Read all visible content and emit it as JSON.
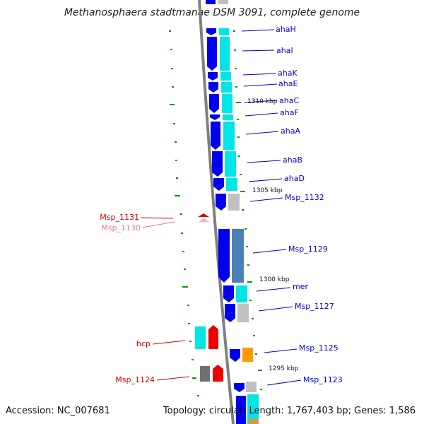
{
  "title": "Methanosphaera stadtmanae DSM 3091, complete genome",
  "footer": {
    "accession": "Accession: NC_007681",
    "topology": "Topology: circular; Length: 1,767,403 bp; Genes: 1,586"
  },
  "colors": {
    "backbone": "#808080",
    "cds": "#0000ee",
    "tick": "#009900",
    "label_blue": "#0000cc",
    "label_red": "#cc0000",
    "label_pink": "#ee7799"
  },
  "scale_labels": [
    {
      "text": "1310 kbp"
    },
    {
      "text": "1305 kbp"
    },
    {
      "text": "1300 kbp"
    },
    {
      "text": "1295 kbp"
    }
  ],
  "genes": [
    {
      "label": "ahaH",
      "strand": "right",
      "color": "blue"
    },
    {
      "label": "ahaI",
      "strand": "right",
      "color": "blue"
    },
    {
      "label": "ahaK",
      "strand": "right",
      "color": "blue"
    },
    {
      "label": "ahaE",
      "strand": "right",
      "color": "blue"
    },
    {
      "label": "ahaC",
      "strand": "right",
      "color": "blue"
    },
    {
      "label": "ahaF",
      "strand": "right",
      "color": "blue"
    },
    {
      "label": "ahaA",
      "strand": "right",
      "color": "blue"
    },
    {
      "label": "ahaB",
      "strand": "right",
      "color": "blue"
    },
    {
      "label": "ahaD",
      "strand": "right",
      "color": "blue"
    },
    {
      "label": "Msp_1132",
      "strand": "right",
      "color": "blue"
    },
    {
      "label": "Msp_1131",
      "strand": "left",
      "color": "red"
    },
    {
      "label": "Msp_1130",
      "strand": "left",
      "color": "pink"
    },
    {
      "label": "Msp_1129",
      "strand": "right",
      "color": "blue"
    },
    {
      "label": "mer",
      "strand": "right",
      "color": "blue"
    },
    {
      "label": "Msp_1127",
      "strand": "right",
      "color": "blue"
    },
    {
      "label": "hcp",
      "strand": "left",
      "color": "red"
    },
    {
      "label": "Msp_1125",
      "strand": "right",
      "color": "blue"
    },
    {
      "label": "Msp_1124",
      "strand": "left",
      "color": "red"
    },
    {
      "label": "Msp_1123",
      "strand": "right",
      "color": "blue"
    }
  ]
}
